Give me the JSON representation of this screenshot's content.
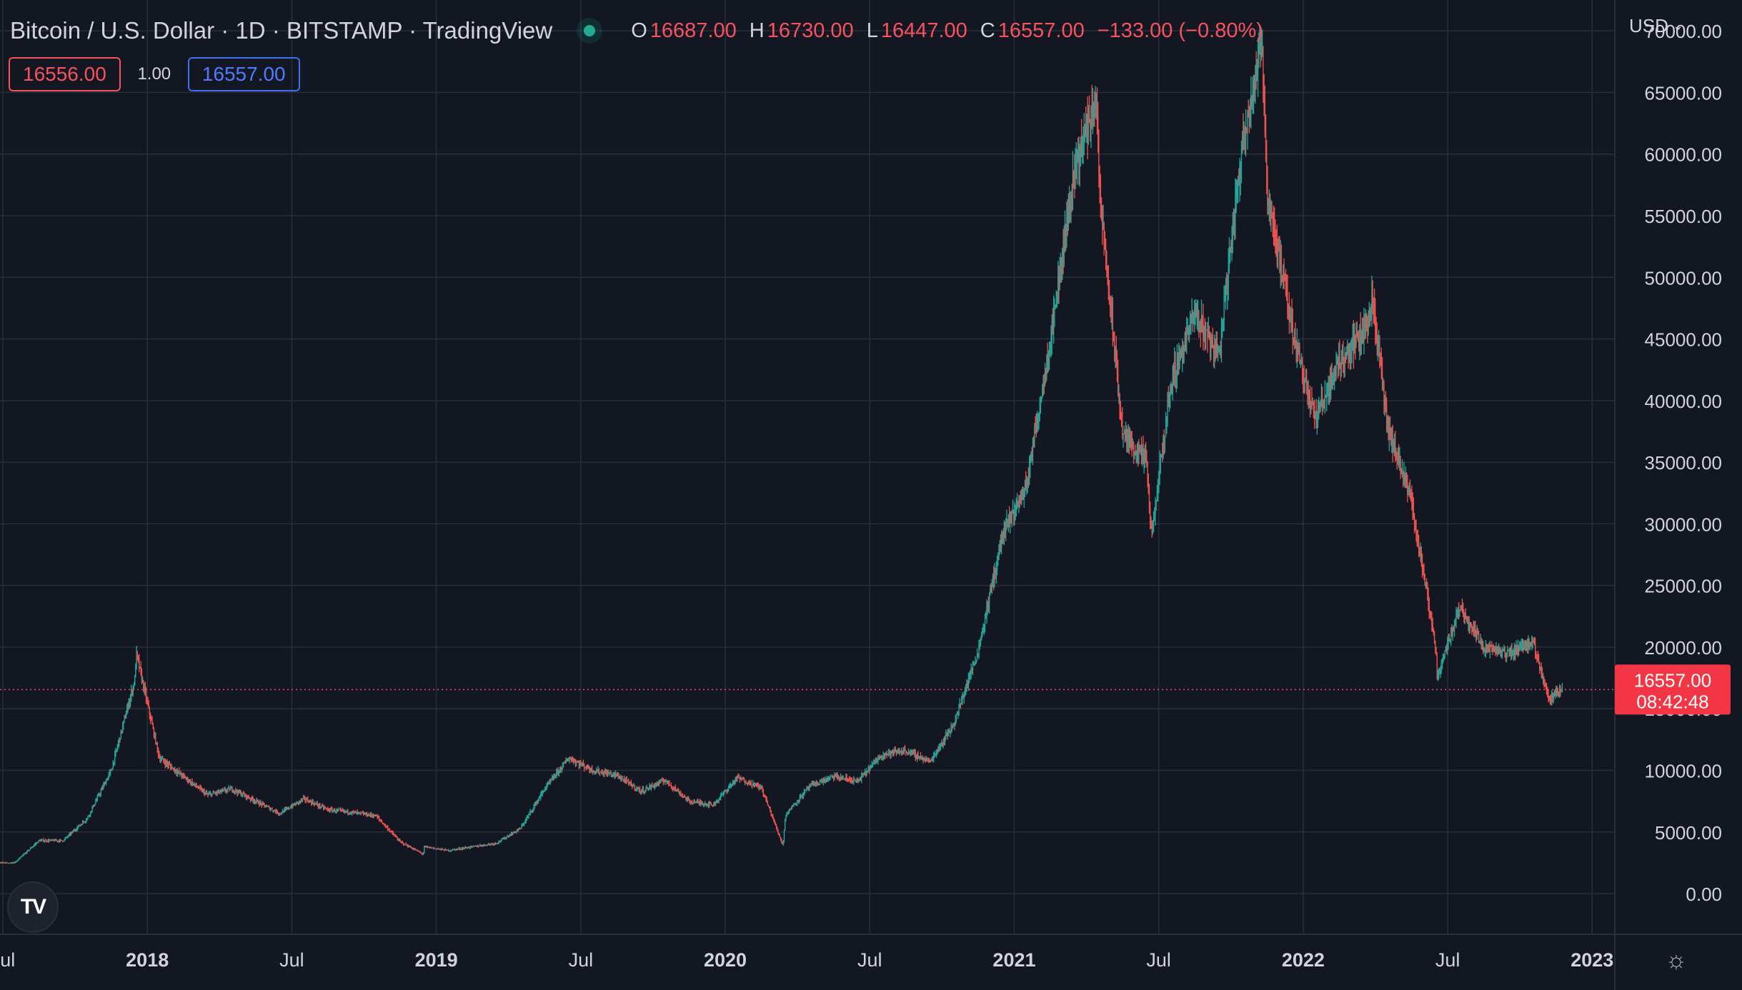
{
  "header": {
    "title": "Bitcoin / U.S. Dollar · 1D · BITSTAMP · TradingView",
    "ohlc": [
      {
        "key": "O",
        "value": "16687.00"
      },
      {
        "key": "H",
        "value": "16730.00"
      },
      {
        "key": "L",
        "value": "16447.00"
      },
      {
        "key": "C",
        "value": "16557.00"
      }
    ],
    "change": "−133.00 (−0.80%)"
  },
  "trade": {
    "sell_price": "16556.00",
    "spread": "1.00",
    "buy_price": "16557.00"
  },
  "currency": {
    "label": "USD",
    "chevron_icon": "chevron-down-icon"
  },
  "last_price": {
    "value": "16557.00",
    "countdown": "08:42:48"
  },
  "icons": {
    "logo": "tradingview-logo",
    "settings": "settings-sun-icon",
    "status": "market-open-dot"
  },
  "colors": {
    "background": "#131722",
    "grid": "#2a2e39",
    "up": "#26a69a",
    "down": "#ef5350",
    "text": "#d1d4dc",
    "last_price_bg": "#f23645"
  },
  "chart_data": {
    "type": "candlestick",
    "title": "Bitcoin / U.S. Dollar · 1D · BITSTAMP · TradingView",
    "ylim": [
      -3300,
      72500
    ],
    "y_ticks": [
      "0.00",
      "5000.00",
      "10000.00",
      "15000.00",
      "20000.00",
      "25000.00",
      "30000.00",
      "35000.00",
      "40000.00",
      "45000.00",
      "50000.00",
      "55000.00",
      "60000.00",
      "65000.00",
      "70000.00"
    ],
    "y_tick_values": [
      0,
      5000,
      10000,
      15000,
      20000,
      25000,
      30000,
      35000,
      40000,
      45000,
      50000,
      55000,
      60000,
      65000,
      70000
    ],
    "x_ticks": [
      {
        "label": "Jul",
        "date": "2017-07",
        "bold": false
      },
      {
        "label": "2018",
        "date": "2018-01",
        "bold": true
      },
      {
        "label": "Jul",
        "date": "2018-07",
        "bold": false
      },
      {
        "label": "2019",
        "date": "2019-01",
        "bold": true
      },
      {
        "label": "Jul",
        "date": "2019-07",
        "bold": false
      },
      {
        "label": "2020",
        "date": "2020-01",
        "bold": true
      },
      {
        "label": "Jul",
        "date": "2020-07",
        "bold": false
      },
      {
        "label": "2021",
        "date": "2021-01",
        "bold": true
      },
      {
        "label": "Jul",
        "date": "2021-07",
        "bold": false
      },
      {
        "label": "2022",
        "date": "2022-01",
        "bold": true
      },
      {
        "label": "Jul",
        "date": "2022-07",
        "bold": false
      },
      {
        "label": "2023",
        "date": "2023-01",
        "bold": true
      }
    ],
    "xlim": [
      "2017-07",
      "2023-02"
    ],
    "last_price_value": 16557,
    "grid": true,
    "series": [
      {
        "values_by_month": [
          {
            "date": "2017-07",
            "price": 2500
          },
          {
            "date": "2017-08",
            "price": 4300
          },
          {
            "date": "2017-09",
            "price": 4300
          },
          {
            "date": "2017-10",
            "price": 6100
          },
          {
            "date": "2017-11",
            "price": 10000
          },
          {
            "date": "2017-12",
            "price": 17500
          },
          {
            "date": "2018-01",
            "price": 11000
          },
          {
            "date": "2018-02",
            "price": 9500
          },
          {
            "date": "2018-03",
            "price": 8000
          },
          {
            "date": "2018-04",
            "price": 8500
          },
          {
            "date": "2018-05",
            "price": 7500
          },
          {
            "date": "2018-06",
            "price": 6500
          },
          {
            "date": "2018-07",
            "price": 7700
          },
          {
            "date": "2018-08",
            "price": 6800
          },
          {
            "date": "2018-09",
            "price": 6600
          },
          {
            "date": "2018-10",
            "price": 6300
          },
          {
            "date": "2018-11",
            "price": 4200
          },
          {
            "date": "2018-12",
            "price": 3800
          },
          {
            "date": "2019-01",
            "price": 3500
          },
          {
            "date": "2019-02",
            "price": 3800
          },
          {
            "date": "2019-03",
            "price": 4100
          },
          {
            "date": "2019-04",
            "price": 5300
          },
          {
            "date": "2019-05",
            "price": 8500
          },
          {
            "date": "2019-06",
            "price": 11000
          },
          {
            "date": "2019-07",
            "price": 10000
          },
          {
            "date": "2019-08",
            "price": 9600
          },
          {
            "date": "2019-09",
            "price": 8300
          },
          {
            "date": "2019-10",
            "price": 9200
          },
          {
            "date": "2019-11",
            "price": 7500
          },
          {
            "date": "2019-12",
            "price": 7200
          },
          {
            "date": "2020-01",
            "price": 9400
          },
          {
            "date": "2020-02",
            "price": 8600
          },
          {
            "date": "2020-03",
            "price": 6400
          },
          {
            "date": "2020-04",
            "price": 8700
          },
          {
            "date": "2020-05",
            "price": 9500
          },
          {
            "date": "2020-06",
            "price": 9100
          },
          {
            "date": "2020-07",
            "price": 11300
          },
          {
            "date": "2020-08",
            "price": 11600
          },
          {
            "date": "2020-09",
            "price": 10700
          },
          {
            "date": "2020-10",
            "price": 13800
          },
          {
            "date": "2020-11",
            "price": 19700
          },
          {
            "date": "2020-12",
            "price": 29000
          },
          {
            "date": "2021-01",
            "price": 33100
          },
          {
            "date": "2021-02",
            "price": 45000
          },
          {
            "date": "2021-03",
            "price": 58800
          },
          {
            "date": "2021-04",
            "price": 57700
          },
          {
            "date": "2021-05",
            "price": 37300
          },
          {
            "date": "2021-06",
            "price": 35000
          },
          {
            "date": "2021-07",
            "price": 41500
          },
          {
            "date": "2021-08",
            "price": 47100
          },
          {
            "date": "2021-09",
            "price": 43800
          },
          {
            "date": "2021-10",
            "price": 61300
          },
          {
            "date": "2021-11",
            "price": 57000
          },
          {
            "date": "2021-12",
            "price": 46200
          },
          {
            "date": "2022-01",
            "price": 38500
          },
          {
            "date": "2022-02",
            "price": 43200
          },
          {
            "date": "2022-03",
            "price": 45500
          },
          {
            "date": "2022-04",
            "price": 37700
          },
          {
            "date": "2022-05",
            "price": 31800
          },
          {
            "date": "2022-06",
            "price": 19900
          },
          {
            "date": "2022-07",
            "price": 23300
          },
          {
            "date": "2022-08",
            "price": 20000
          },
          {
            "date": "2022-09",
            "price": 19400
          },
          {
            "date": "2022-10",
            "price": 20500
          },
          {
            "date": "2022-11",
            "price": 16557
          }
        ],
        "extremes": [
          {
            "date": "2017-12-17",
            "price": 19600
          },
          {
            "date": "2018-12-15",
            "price": 3200
          },
          {
            "date": "2020-03-13",
            "price": 3900
          },
          {
            "date": "2021-04-14",
            "price": 64800
          },
          {
            "date": "2021-06-22",
            "price": 28800
          },
          {
            "date": "2021-11-10",
            "price": 69000
          },
          {
            "date": "2022-03-28",
            "price": 48200
          },
          {
            "date": "2022-06-18",
            "price": 17600
          },
          {
            "date": "2022-11-09",
            "price": 15600
          }
        ]
      }
    ]
  }
}
